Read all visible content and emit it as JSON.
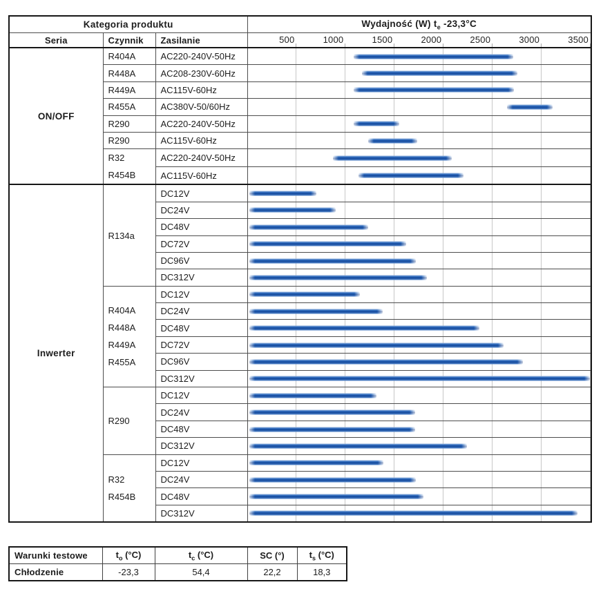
{
  "labels": {
    "kategoria": "Kategoria produktu",
    "seria": "Seria",
    "czynnik": "Czynnik",
    "zasilanie": "Zasilanie"
  },
  "chart_data": {
    "type": "bar",
    "variant": "horizontal-range-bars",
    "title": "Wydajność (W) te -23,3°C",
    "title_parts": {
      "prefix": "Wydajność (W) t",
      "sub": "e",
      "suffix": " -23,3°C"
    },
    "unit": "W",
    "xlim": [
      0,
      3500
    ],
    "x_ticks": [
      500,
      1000,
      1500,
      2000,
      2500,
      3000,
      3500
    ],
    "grid": true,
    "bar_colors": {
      "body": "#1f60b8",
      "tip": "#9cbfe6"
    },
    "sections": [
      {
        "seria": "ON/OFF",
        "groups": [
          {
            "czynnik": [
              "R404A"
            ],
            "rows": [
              {
                "zasilanie": "AC220-240V-50Hz",
                "range_w": [
                  1080,
                  2710
                ]
              }
            ]
          },
          {
            "czynnik": [
              "R448A"
            ],
            "rows": [
              {
                "zasilanie": "AC208-230V-60Hz",
                "range_w": [
                  1170,
                  2750
                ]
              }
            ]
          },
          {
            "czynnik": [
              "R449A"
            ],
            "rows": [
              {
                "zasilanie": "AC115V-60Hz",
                "range_w": [
                  1080,
                  2720
                ]
              }
            ]
          },
          {
            "czynnik": [
              "R455A"
            ],
            "rows": [
              {
                "zasilanie": "AC380V-50/60Hz",
                "range_w": [
                  2650,
                  3110
                ]
              }
            ]
          },
          {
            "czynnik": [
              "R290"
            ],
            "rows": [
              {
                "zasilanie": "AC220-240V-50Hz",
                "range_w": [
                  1080,
                  1550
                ]
              }
            ]
          },
          {
            "czynnik": [
              "R290"
            ],
            "rows": [
              {
                "zasilanie": "AC115V-60Hz",
                "range_w": [
                  1230,
                  1730
                ]
              }
            ]
          },
          {
            "czynnik": [
              "R32",
              "R454B"
            ],
            "rows": [
              {
                "zasilanie": "AC220-240V-50Hz",
                "range_w": [
                  870,
                  2080
                ]
              },
              {
                "zasilanie": "AC115V-60Hz",
                "range_w": [
                  1130,
                  2200
                ]
              }
            ]
          }
        ]
      },
      {
        "seria": "Inwerter",
        "groups": [
          {
            "czynnik": [
              "R134a"
            ],
            "rows": [
              {
                "zasilanie": "DC12V",
                "range_w": [
                  15,
                  700
                ]
              },
              {
                "zasilanie": "DC24V",
                "range_w": [
                  15,
                  900
                ]
              },
              {
                "zasilanie": "DC48V",
                "range_w": [
                  15,
                  1230
                ]
              },
              {
                "zasilanie": "DC72V",
                "range_w": [
                  15,
                  1615
                ]
              },
              {
                "zasilanie": "DC96V",
                "range_w": [
                  15,
                  1715
                ]
              },
              {
                "zasilanie": "DC312V",
                "range_w": [
                  15,
                  1830
                ]
              }
            ]
          },
          {
            "czynnik": [
              "R404A",
              "R448A",
              "R449A",
              "R455A"
            ],
            "rows": [
              {
                "zasilanie": "DC12V",
                "range_w": [
                  15,
                  1145
                ]
              },
              {
                "zasilanie": "DC24V",
                "range_w": [
                  15,
                  1375
                ]
              },
              {
                "zasilanie": "DC48V",
                "range_w": [
                  15,
                  2365
                ]
              },
              {
                "zasilanie": "DC72V",
                "range_w": [
                  15,
                  2610
                ]
              },
              {
                "zasilanie": "DC96V",
                "range_w": [
                  15,
                  2810
                ]
              },
              {
                "zasilanie": "DC312V",
                "range_w": [
                  15,
                  3490
                ]
              }
            ]
          },
          {
            "czynnik": [
              "R290"
            ],
            "rows": [
              {
                "zasilanie": "DC12V",
                "range_w": [
                  15,
                  1315
                ]
              },
              {
                "zasilanie": "DC24V",
                "range_w": [
                  15,
                  1710
                ]
              },
              {
                "zasilanie": "DC48V",
                "range_w": [
                  15,
                  1710
                ]
              },
              {
                "zasilanie": "DC312V",
                "range_w": [
                  15,
                  2235
                ]
              }
            ]
          },
          {
            "czynnik": [
              "R32",
              "R454B"
            ],
            "rows": [
              {
                "zasilanie": "DC12V",
                "range_w": [
                  15,
                  1385
                ]
              },
              {
                "zasilanie": "DC24V",
                "range_w": [
                  15,
                  1720
                ]
              },
              {
                "zasilanie": "DC48V",
                "range_w": [
                  15,
                  1795
                ]
              },
              {
                "zasilanie": "DC312V",
                "range_w": [
                  15,
                  3365
                ]
              }
            ]
          }
        ]
      }
    ]
  },
  "test_table": {
    "title": "Warunki testowe",
    "columns": [
      {
        "base": "t",
        "sub": "o",
        "unit": "(°C)"
      },
      {
        "base": "t",
        "sub": "c",
        "unit": "(°C)"
      },
      {
        "base": "SC",
        "sub": "",
        "unit": "(°)"
      },
      {
        "base": "t",
        "sub": "s",
        "unit": "(°C)"
      }
    ],
    "rows": [
      {
        "label": "Chłodzenie",
        "values": [
          "-23,3",
          "54,4",
          "22,2",
          "18,3"
        ]
      }
    ]
  }
}
